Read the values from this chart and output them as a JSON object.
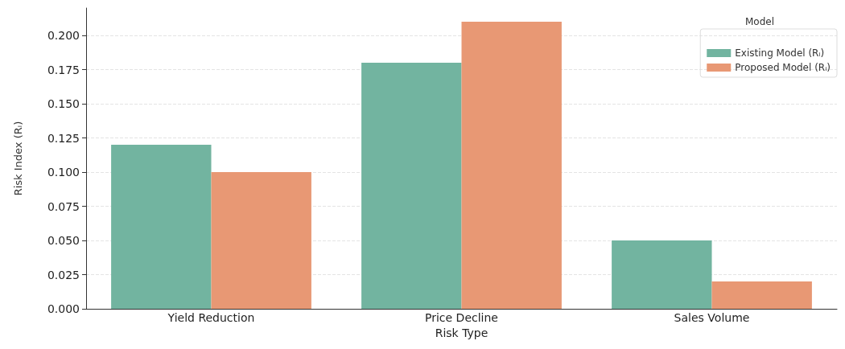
{
  "chart_data": {
    "type": "bar",
    "xlabel": "Risk Type",
    "ylabel": "Risk Index (Rᵢ)",
    "legend_title": "Model",
    "categories": [
      "Yield Reduction",
      "Price Decline",
      "Sales Volume"
    ],
    "series": [
      {
        "name": "Existing Model (Rᵢ)",
        "color": "#72b4a0",
        "values": [
          0.12,
          0.18,
          0.05
        ]
      },
      {
        "name": "Proposed Model (Rᵢ)",
        "color": "#e89874",
        "values": [
          0.1,
          0.21,
          0.02
        ]
      }
    ],
    "ylim": [
      0,
      0.22
    ],
    "yticks": [
      {
        "value": 0,
        "label": "0.000"
      },
      {
        "value": 0.025,
        "label": "0.025"
      },
      {
        "value": 0.05,
        "label": "0.050"
      },
      {
        "value": 0.075,
        "label": "0.075"
      },
      {
        "value": 0.1,
        "label": "0.100"
      },
      {
        "value": 0.125,
        "label": "0.125"
      },
      {
        "value": 0.15,
        "label": "0.150"
      },
      {
        "value": 0.175,
        "label": "0.175"
      },
      {
        "value": 0.2,
        "label": "0.200"
      }
    ],
    "grid": "y",
    "legend": "top right"
  }
}
